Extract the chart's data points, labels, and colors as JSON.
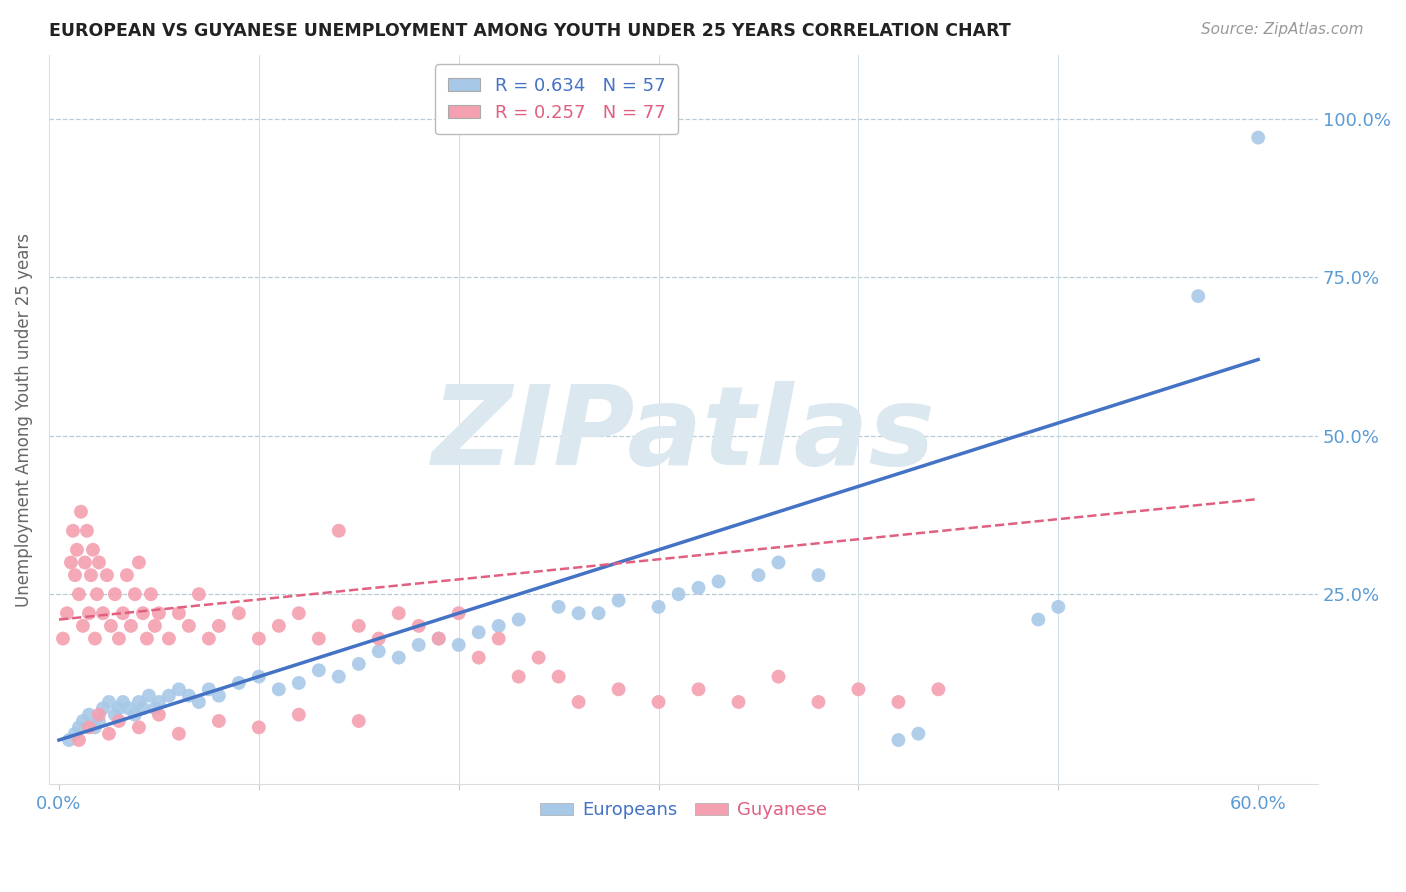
{
  "title": "EUROPEAN VS GUYANESE UNEMPLOYMENT AMONG YOUTH UNDER 25 YEARS CORRELATION CHART",
  "source": "Source: ZipAtlas.com",
  "ylabel": "Unemployment Among Youth under 25 years",
  "xlim": [
    -0.005,
    0.63
  ],
  "ylim": [
    -0.05,
    1.1
  ],
  "european_R": 0.634,
  "european_N": 57,
  "guyanese_R": 0.257,
  "guyanese_N": 77,
  "european_color": "#a8c8e8",
  "guyanese_color": "#f4a0b0",
  "trendline_european_color": "#4472c4",
  "trendline_guyanese_color": "#e06080",
  "background_color": "#ffffff",
  "watermark": "ZIPatlas",
  "watermark_color": "#dce8f0",
  "ytick_vals": [
    0.0,
    0.25,
    0.5,
    0.75,
    1.0
  ],
  "ytick_labels": [
    "",
    "25.0%",
    "50.0%",
    "75.0%",
    "100.0%"
  ],
  "xtick_vals": [
    0.0,
    0.1,
    0.2,
    0.3,
    0.4,
    0.5,
    0.6
  ],
  "xtick_labels": [
    "0.0%",
    "",
    "",
    "",
    "",
    "",
    "60.0%"
  ],
  "european_scatter": [
    [
      0.005,
      0.02
    ],
    [
      0.008,
      0.03
    ],
    [
      0.01,
      0.04
    ],
    [
      0.012,
      0.05
    ],
    [
      0.015,
      0.06
    ],
    [
      0.018,
      0.04
    ],
    [
      0.02,
      0.05
    ],
    [
      0.022,
      0.07
    ],
    [
      0.025,
      0.08
    ],
    [
      0.028,
      0.06
    ],
    [
      0.03,
      0.07
    ],
    [
      0.032,
      0.08
    ],
    [
      0.035,
      0.07
    ],
    [
      0.038,
      0.06
    ],
    [
      0.04,
      0.08
    ],
    [
      0.042,
      0.07
    ],
    [
      0.045,
      0.09
    ],
    [
      0.048,
      0.07
    ],
    [
      0.05,
      0.08
    ],
    [
      0.055,
      0.09
    ],
    [
      0.06,
      0.1
    ],
    [
      0.065,
      0.09
    ],
    [
      0.07,
      0.08
    ],
    [
      0.075,
      0.1
    ],
    [
      0.08,
      0.09
    ],
    [
      0.09,
      0.11
    ],
    [
      0.1,
      0.12
    ],
    [
      0.11,
      0.1
    ],
    [
      0.12,
      0.11
    ],
    [
      0.13,
      0.13
    ],
    [
      0.14,
      0.12
    ],
    [
      0.15,
      0.14
    ],
    [
      0.16,
      0.16
    ],
    [
      0.17,
      0.15
    ],
    [
      0.18,
      0.17
    ],
    [
      0.19,
      0.18
    ],
    [
      0.2,
      0.17
    ],
    [
      0.21,
      0.19
    ],
    [
      0.22,
      0.2
    ],
    [
      0.23,
      0.21
    ],
    [
      0.25,
      0.23
    ],
    [
      0.26,
      0.22
    ],
    [
      0.27,
      0.22
    ],
    [
      0.28,
      0.24
    ],
    [
      0.3,
      0.23
    ],
    [
      0.31,
      0.25
    ],
    [
      0.32,
      0.26
    ],
    [
      0.33,
      0.27
    ],
    [
      0.35,
      0.28
    ],
    [
      0.36,
      0.3
    ],
    [
      0.38,
      0.28
    ],
    [
      0.42,
      0.02
    ],
    [
      0.43,
      0.03
    ],
    [
      0.49,
      0.21
    ],
    [
      0.5,
      0.23
    ],
    [
      0.57,
      0.72
    ],
    [
      0.6,
      0.97
    ]
  ],
  "guyanese_scatter": [
    [
      0.002,
      0.18
    ],
    [
      0.004,
      0.22
    ],
    [
      0.006,
      0.3
    ],
    [
      0.007,
      0.35
    ],
    [
      0.008,
      0.28
    ],
    [
      0.009,
      0.32
    ],
    [
      0.01,
      0.25
    ],
    [
      0.011,
      0.38
    ],
    [
      0.012,
      0.2
    ],
    [
      0.013,
      0.3
    ],
    [
      0.014,
      0.35
    ],
    [
      0.015,
      0.22
    ],
    [
      0.016,
      0.28
    ],
    [
      0.017,
      0.32
    ],
    [
      0.018,
      0.18
    ],
    [
      0.019,
      0.25
    ],
    [
      0.02,
      0.3
    ],
    [
      0.022,
      0.22
    ],
    [
      0.024,
      0.28
    ],
    [
      0.026,
      0.2
    ],
    [
      0.028,
      0.25
    ],
    [
      0.03,
      0.18
    ],
    [
      0.032,
      0.22
    ],
    [
      0.034,
      0.28
    ],
    [
      0.036,
      0.2
    ],
    [
      0.038,
      0.25
    ],
    [
      0.04,
      0.3
    ],
    [
      0.042,
      0.22
    ],
    [
      0.044,
      0.18
    ],
    [
      0.046,
      0.25
    ],
    [
      0.048,
      0.2
    ],
    [
      0.05,
      0.22
    ],
    [
      0.055,
      0.18
    ],
    [
      0.06,
      0.22
    ],
    [
      0.065,
      0.2
    ],
    [
      0.07,
      0.25
    ],
    [
      0.075,
      0.18
    ],
    [
      0.08,
      0.2
    ],
    [
      0.09,
      0.22
    ],
    [
      0.1,
      0.18
    ],
    [
      0.11,
      0.2
    ],
    [
      0.12,
      0.22
    ],
    [
      0.13,
      0.18
    ],
    [
      0.14,
      0.35
    ],
    [
      0.15,
      0.2
    ],
    [
      0.16,
      0.18
    ],
    [
      0.17,
      0.22
    ],
    [
      0.18,
      0.2
    ],
    [
      0.19,
      0.18
    ],
    [
      0.2,
      0.22
    ],
    [
      0.21,
      0.15
    ],
    [
      0.22,
      0.18
    ],
    [
      0.23,
      0.12
    ],
    [
      0.24,
      0.15
    ],
    [
      0.25,
      0.12
    ],
    [
      0.26,
      0.08
    ],
    [
      0.28,
      0.1
    ],
    [
      0.3,
      0.08
    ],
    [
      0.32,
      0.1
    ],
    [
      0.34,
      0.08
    ],
    [
      0.36,
      0.12
    ],
    [
      0.38,
      0.08
    ],
    [
      0.4,
      0.1
    ],
    [
      0.42,
      0.08
    ],
    [
      0.44,
      0.1
    ],
    [
      0.01,
      0.02
    ],
    [
      0.015,
      0.04
    ],
    [
      0.02,
      0.06
    ],
    [
      0.025,
      0.03
    ],
    [
      0.03,
      0.05
    ],
    [
      0.04,
      0.04
    ],
    [
      0.05,
      0.06
    ],
    [
      0.06,
      0.03
    ],
    [
      0.08,
      0.05
    ],
    [
      0.1,
      0.04
    ],
    [
      0.12,
      0.06
    ],
    [
      0.15,
      0.05
    ]
  ]
}
